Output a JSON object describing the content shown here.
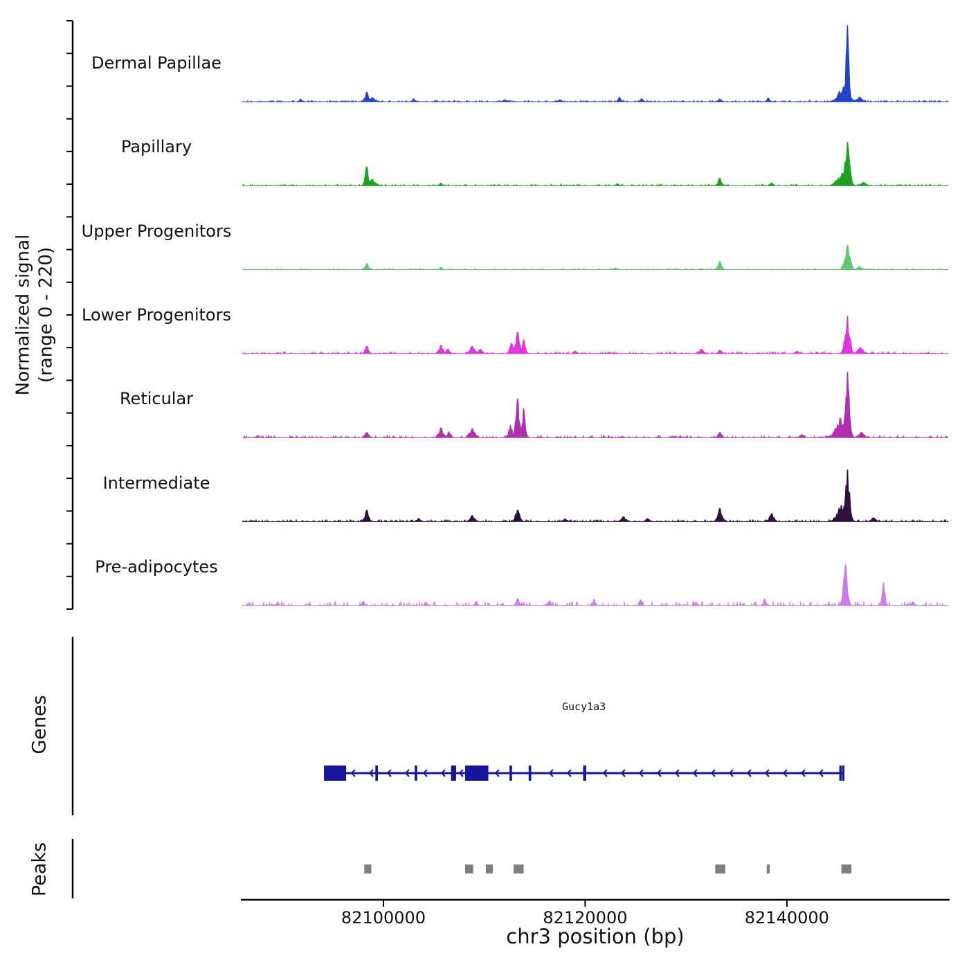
{
  "figure": {
    "y_axis_label_line1": "Normalized signal",
    "y_axis_label_line2": "(range 0 - 220)",
    "x_axis_label": "chr3 position (bp)",
    "genes_label": "Genes",
    "peaks_label": "Peaks"
  },
  "chart_data": {
    "type": "area",
    "title": "",
    "xlabel": "chr3 position (bp)",
    "ylabel": "Normalized signal (range 0 - 220)",
    "x_range_bp": [
      82086000,
      82156000
    ],
    "x_ticks": [
      82100000,
      82120000,
      82140000
    ],
    "x_tick_labels": [
      "82100000",
      "82120000",
      "82140000"
    ],
    "y_range": [
      0,
      220
    ],
    "tracks": [
      {
        "name": "Dermal Papillae",
        "color": "#2342cb",
        "noise": {
          "density": 0.5,
          "height": 5
        },
        "peaks": [
          [
            82091800,
            8,
            150
          ],
          [
            82098350,
            28,
            200
          ],
          [
            82098900,
            12,
            320
          ],
          [
            82103000,
            9,
            160
          ],
          [
            82112000,
            6,
            200
          ],
          [
            82117500,
            6,
            180
          ],
          [
            82123400,
            13,
            160
          ],
          [
            82125600,
            9,
            160
          ],
          [
            82133350,
            8,
            200
          ],
          [
            82138150,
            11,
            160
          ],
          [
            82146000,
            220,
            170
          ],
          [
            82145600,
            42,
            520
          ],
          [
            82147200,
            14,
            300
          ]
        ]
      },
      {
        "name": "Papillary",
        "color": "#1ea11e",
        "noise": {
          "density": 0.5,
          "height": 5
        },
        "peaks": [
          [
            82098350,
            55,
            180
          ],
          [
            82098900,
            18,
            350
          ],
          [
            82105700,
            8,
            160
          ],
          [
            82123200,
            6,
            180
          ],
          [
            82133350,
            22,
            200
          ],
          [
            82138500,
            9,
            160
          ],
          [
            82146000,
            125,
            240
          ],
          [
            82145500,
            36,
            520
          ],
          [
            82147600,
            10,
            300
          ]
        ]
      },
      {
        "name": "Upper Progenitors",
        "color": "#5ec96e",
        "noise": {
          "density": 0.45,
          "height": 4
        },
        "peaks": [
          [
            82098350,
            18,
            200
          ],
          [
            82105700,
            7,
            160
          ],
          [
            82123000,
            5,
            180
          ],
          [
            82133350,
            24,
            200
          ],
          [
            82146000,
            70,
            270
          ],
          [
            82147200,
            10,
            260
          ]
        ]
      },
      {
        "name": "Lower Progenitors",
        "color": "#e036e0",
        "noise": {
          "density": 0.5,
          "height": 6
        },
        "peaks": [
          [
            82098350,
            22,
            200
          ],
          [
            82105700,
            24,
            240
          ],
          [
            82106400,
            14,
            200
          ],
          [
            82108800,
            21,
            280
          ],
          [
            82109600,
            13,
            240
          ],
          [
            82112700,
            30,
            200
          ],
          [
            82113300,
            62,
            230
          ],
          [
            82113900,
            40,
            180
          ],
          [
            82119000,
            8,
            200
          ],
          [
            82131500,
            13,
            240
          ],
          [
            82133350,
            10,
            200
          ],
          [
            82141000,
            8,
            200
          ],
          [
            82146000,
            108,
            250
          ],
          [
            82147300,
            18,
            300
          ]
        ]
      },
      {
        "name": "Reticular",
        "color": "#b02fae",
        "noise": {
          "density": 0.5,
          "height": 6
        },
        "peaks": [
          [
            82098350,
            15,
            200
          ],
          [
            82105700,
            28,
            240
          ],
          [
            82106500,
            17,
            200
          ],
          [
            82108800,
            26,
            280
          ],
          [
            82112600,
            36,
            200
          ],
          [
            82113300,
            112,
            190
          ],
          [
            82113900,
            85,
            160
          ],
          [
            82133350,
            15,
            200
          ],
          [
            82141500,
            9,
            200
          ],
          [
            82145300,
            55,
            500
          ],
          [
            82146000,
            188,
            220
          ],
          [
            82147400,
            16,
            300
          ]
        ]
      },
      {
        "name": "Intermediate",
        "color": "#2c123c",
        "noise": {
          "density": 0.55,
          "height": 6
        },
        "peaks": [
          [
            82098350,
            33,
            200
          ],
          [
            82103500,
            9,
            200
          ],
          [
            82108800,
            18,
            240
          ],
          [
            82113300,
            33,
            240
          ],
          [
            82118000,
            8,
            200
          ],
          [
            82123800,
            14,
            240
          ],
          [
            82126200,
            9,
            200
          ],
          [
            82133350,
            38,
            240
          ],
          [
            82138500,
            23,
            240
          ],
          [
            82145400,
            46,
            450
          ],
          [
            82146000,
            148,
            240
          ],
          [
            82148600,
            11,
            250
          ]
        ]
      },
      {
        "name": "Pre-adipocytes",
        "color": "#c97cea",
        "noise": {
          "density": 0.28,
          "height": 13
        },
        "peaks": [
          [
            82089500,
            10,
            130
          ],
          [
            82098000,
            12,
            140
          ],
          [
            82104200,
            10,
            140
          ],
          [
            82109200,
            12,
            140
          ],
          [
            82113300,
            20,
            170
          ],
          [
            82116500,
            14,
            140
          ],
          [
            82120900,
            19,
            140
          ],
          [
            82125500,
            17,
            140
          ],
          [
            82131000,
            10,
            140
          ],
          [
            82137800,
            19,
            140
          ],
          [
            82145800,
            118,
            210
          ],
          [
            82149600,
            66,
            150
          ],
          [
            82152500,
            12,
            140
          ]
        ]
      }
    ],
    "gene_track": {
      "label": "Genes",
      "items": [
        {
          "name": "Gucy1a3",
          "strand": "-",
          "start": 82094100,
          "end": 82145650,
          "color": "#16169b",
          "exons": [
            [
              82094100,
              82096300
            ],
            [
              82099200,
              82099450
            ],
            [
              82103100,
              82103350
            ],
            [
              82106700,
              82107200
            ],
            [
              82108100,
              82110400
            ],
            [
              82112500,
              82112750
            ],
            [
              82114400,
              82114650
            ],
            [
              82119800,
              82120100
            ],
            [
              82145200,
              82145450
            ],
            [
              82145500,
              82145650
            ]
          ]
        }
      ]
    },
    "peak_track": {
      "label": "Peaks",
      "color": "#7f7f7f",
      "intervals": [
        [
          82098100,
          82098800
        ],
        [
          82108100,
          82108900
        ],
        [
          82110150,
          82110850
        ],
        [
          82112900,
          82113900
        ],
        [
          82132900,
          82133900
        ],
        [
          82138000,
          82138300
        ],
        [
          82145400,
          82146400
        ]
      ]
    }
  }
}
